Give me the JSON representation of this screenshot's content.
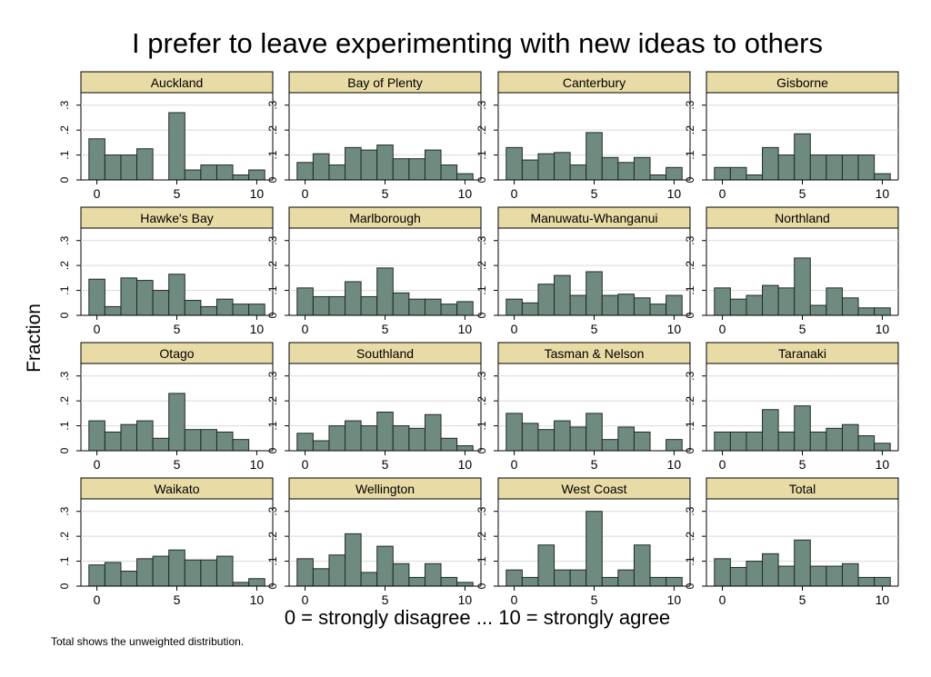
{
  "title": "I prefer to leave experimenting with new ideas to others",
  "ylabel": "Fraction",
  "xlabel": "0 = strongly disagree ... 10 = strongly agree",
  "note": "Total shows the unweighted distribution.",
  "colors": {
    "bar_fill": "#6f8b80",
    "bar_stroke": "#1f2a26",
    "header_fill": "#e8dba6",
    "axis": "#000000",
    "grid": "#d9d9d9"
  },
  "chart_data": {
    "type": "bar",
    "layout": "small-multiples",
    "x": [
      0,
      1,
      2,
      3,
      4,
      5,
      6,
      7,
      8,
      9,
      10
    ],
    "xticks": [
      "0",
      "5",
      "10"
    ],
    "xlim": [
      -1,
      11
    ],
    "yticks": [
      "0",
      ".1",
      ".2",
      ".3"
    ],
    "ylim": [
      0,
      0.35
    ],
    "grid": true,
    "panels": [
      {
        "name": "Auckland",
        "values": [
          0.165,
          0.1,
          0.1,
          0.125,
          0.0,
          0.27,
          0.04,
          0.06,
          0.06,
          0.02,
          0.04
        ]
      },
      {
        "name": "Bay of Plenty",
        "values": [
          0.07,
          0.105,
          0.06,
          0.13,
          0.12,
          0.14,
          0.085,
          0.085,
          0.12,
          0.06,
          0.025
        ]
      },
      {
        "name": "Canterbury",
        "values": [
          0.13,
          0.08,
          0.105,
          0.11,
          0.06,
          0.19,
          0.09,
          0.07,
          0.09,
          0.02,
          0.05
        ]
      },
      {
        "name": "Gisborne",
        "values": [
          0.05,
          0.05,
          0.02,
          0.13,
          0.1,
          0.185,
          0.1,
          0.1,
          0.1,
          0.1,
          0.025
        ]
      },
      {
        "name": "Hawke's Bay",
        "values": [
          0.145,
          0.035,
          0.15,
          0.14,
          0.1,
          0.165,
          0.06,
          0.035,
          0.065,
          0.045,
          0.045
        ]
      },
      {
        "name": "Marlborough",
        "values": [
          0.11,
          0.075,
          0.075,
          0.135,
          0.075,
          0.19,
          0.09,
          0.065,
          0.065,
          0.045,
          0.055
        ]
      },
      {
        "name": "Manuwatu-Whanganui",
        "values": [
          0.065,
          0.05,
          0.125,
          0.16,
          0.08,
          0.175,
          0.08,
          0.085,
          0.07,
          0.045,
          0.08
        ]
      },
      {
        "name": "Northland",
        "values": [
          0.11,
          0.065,
          0.08,
          0.12,
          0.11,
          0.23,
          0.04,
          0.11,
          0.07,
          0.03,
          0.03
        ]
      },
      {
        "name": "Otago",
        "values": [
          0.12,
          0.075,
          0.105,
          0.12,
          0.05,
          0.23,
          0.085,
          0.085,
          0.075,
          0.045,
          0.0
        ]
      },
      {
        "name": "Southland",
        "values": [
          0.07,
          0.04,
          0.1,
          0.12,
          0.1,
          0.155,
          0.1,
          0.09,
          0.145,
          0.05,
          0.02
        ]
      },
      {
        "name": "Tasman & Nelson",
        "values": [
          0.15,
          0.11,
          0.085,
          0.12,
          0.095,
          0.15,
          0.045,
          0.095,
          0.075,
          0.0,
          0.045
        ]
      },
      {
        "name": "Taranaki",
        "values": [
          0.075,
          0.075,
          0.075,
          0.165,
          0.075,
          0.18,
          0.075,
          0.09,
          0.105,
          0.06,
          0.03
        ]
      },
      {
        "name": "Waikato",
        "values": [
          0.085,
          0.095,
          0.06,
          0.11,
          0.12,
          0.145,
          0.105,
          0.105,
          0.12,
          0.015,
          0.03
        ]
      },
      {
        "name": "Wellington",
        "values": [
          0.11,
          0.07,
          0.125,
          0.21,
          0.055,
          0.16,
          0.09,
          0.035,
          0.09,
          0.035,
          0.015
        ]
      },
      {
        "name": "West Coast",
        "values": [
          0.065,
          0.035,
          0.165,
          0.065,
          0.065,
          0.3,
          0.035,
          0.065,
          0.165,
          0.035,
          0.035
        ]
      },
      {
        "name": "Total",
        "values": [
          0.11,
          0.075,
          0.1,
          0.13,
          0.08,
          0.185,
          0.08,
          0.08,
          0.09,
          0.035,
          0.035
        ]
      }
    ]
  }
}
